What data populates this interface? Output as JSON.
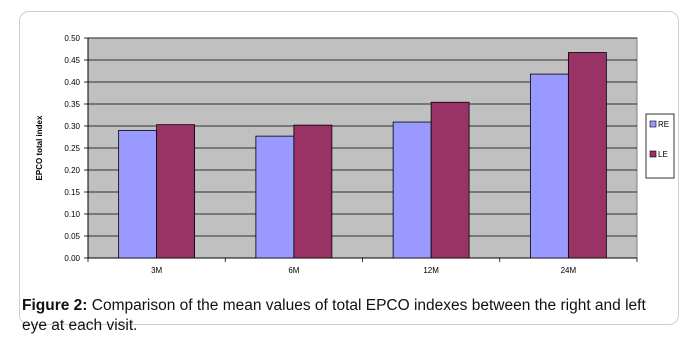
{
  "chart_data": {
    "type": "bar",
    "categories": [
      "3M",
      "6M",
      "12M",
      "24M"
    ],
    "series": [
      {
        "name": "RE",
        "color": "#9999ff",
        "values": [
          0.29,
          0.277,
          0.309,
          0.418
        ]
      },
      {
        "name": "LE",
        "color": "#993366",
        "values": [
          0.303,
          0.302,
          0.354,
          0.467
        ]
      }
    ],
    "ylabel": "EPCO total index",
    "xlabel": "",
    "ylim": [
      0,
      0.5
    ],
    "yticks": [
      "0.00",
      "0.05",
      "0.10",
      "0.15",
      "0.20",
      "0.25",
      "0.30",
      "0.35",
      "0.40",
      "0.45",
      "0.50"
    ],
    "grid": true,
    "legend_position": "right",
    "plot_background": "#c0c0c0"
  },
  "caption": {
    "label": "Figure 2:",
    "text": " Comparison of the mean values of total EPCO indexes between the right and left eye at each visit."
  }
}
